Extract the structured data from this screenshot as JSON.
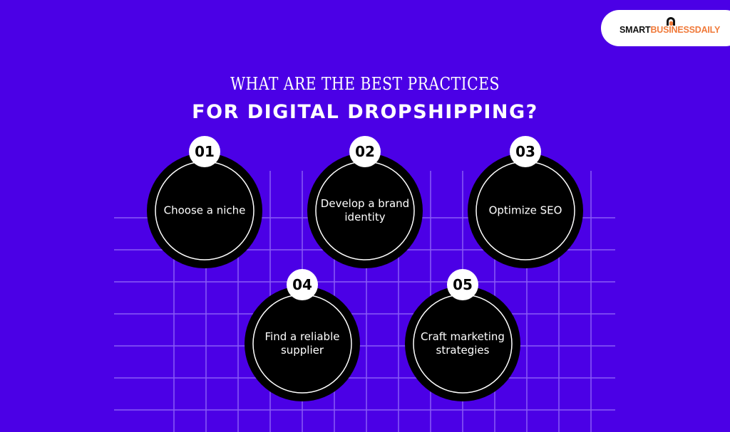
{
  "logo": {
    "part1": "SMART",
    "part2": "BUSINESSDAILY"
  },
  "title": {
    "line1": "WHAT ARE THE BEST PRACTICES",
    "line2": "FOR DIGITAL DROPSHIPPING?"
  },
  "colors": {
    "background": "#4b00e6",
    "circle": "#000000",
    "grid": "#8a5cf5",
    "logo_accent": "#f07a3a"
  },
  "steps": [
    {
      "number": "01",
      "label": "Choose a niche"
    },
    {
      "number": "02",
      "label": "Develop a brand identity"
    },
    {
      "number": "03",
      "label": "Optimize SEO"
    },
    {
      "number": "04",
      "label": "Find a reliable supplier"
    },
    {
      "number": "05",
      "label": "Craft marketing strategies"
    }
  ]
}
